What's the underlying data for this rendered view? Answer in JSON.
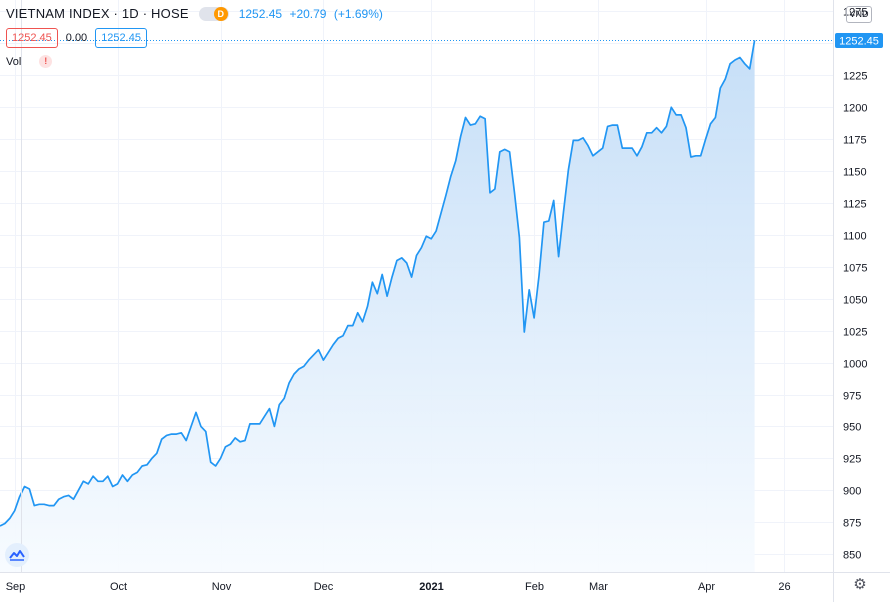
{
  "header": {
    "symbol": "VIETNAM INDEX · 1D · HOSE",
    "badge": "D",
    "last": "1252.45",
    "change": "+20.79",
    "change_pct": "(+1.69%)"
  },
  "price_row": {
    "bid": "1252.45",
    "spread": "0.00",
    "ask": "1252.45"
  },
  "volume": {
    "label": "Vol",
    "warning": "!"
  },
  "currency": "VND",
  "icons": {
    "logo": "tradingview-logo-icon",
    "settings": "gear-icon"
  },
  "colors": {
    "line": "#2196f3",
    "area_top": "#c3ddf7",
    "area_bottom": "#f7fbff",
    "price_label_bg": "#2196f3"
  },
  "chart_data": {
    "type": "area",
    "y_ticks": [
      1275,
      1250,
      1225,
      1200,
      1175,
      1150,
      1125,
      1100,
      1075,
      1050,
      1025,
      1000,
      975,
      950,
      925,
      900,
      875,
      850
    ],
    "ylim": [
      836,
      1284
    ],
    "x_labels": [
      {
        "label": "Sep",
        "index": 3
      },
      {
        "label": "Oct",
        "index": 24
      },
      {
        "label": "Nov",
        "index": 45
      },
      {
        "label": "Dec",
        "index": 66
      },
      {
        "label": "2021",
        "index": 88
      },
      {
        "label": "Feb",
        "index": 109
      },
      {
        "label": "Mar",
        "index": 122
      },
      {
        "label": "Apr",
        "index": 144
      },
      {
        "label": "26",
        "index": 160
      }
    ],
    "last_price_label": "1252.45",
    "grid": true,
    "series": [
      {
        "values": [
          872,
          874,
          878,
          884,
          895,
          903,
          901,
          888,
          889,
          889,
          888,
          888,
          893,
          895,
          896,
          893,
          900,
          907,
          905,
          911,
          907,
          907,
          911,
          903,
          905,
          912,
          907,
          912,
          914,
          919,
          920,
          925,
          929,
          940,
          943,
          944,
          944,
          945,
          939,
          950,
          961,
          950,
          946,
          922,
          919,
          925,
          934,
          936,
          941,
          938,
          939,
          952,
          952,
          952,
          958,
          964,
          950,
          967,
          972,
          984,
          991,
          995,
          997,
          1002,
          1006,
          1010,
          1002,
          1008,
          1014,
          1019,
          1021,
          1029,
          1029,
          1039,
          1032,
          1044,
          1063,
          1054,
          1069,
          1052,
          1067,
          1080,
          1082,
          1078,
          1067,
          1084,
          1090,
          1099,
          1097,
          1103,
          1117,
          1131,
          1146,
          1158,
          1177,
          1192,
          1186,
          1187,
          1193,
          1191,
          1133,
          1136,
          1165,
          1167,
          1165,
          1133,
          1098,
          1024,
          1057,
          1035,
          1068,
          1110,
          1111,
          1127,
          1083,
          1118,
          1151,
          1174,
          1174,
          1176,
          1170,
          1162,
          1165,
          1168,
          1185,
          1186,
          1186,
          1168,
          1168,
          1168,
          1162,
          1169,
          1180,
          1180,
          1184,
          1180,
          1185,
          1200,
          1194,
          1194,
          1184,
          1161,
          1162,
          1162,
          1175,
          1187,
          1192,
          1215,
          1222,
          1234,
          1237,
          1239,
          1234,
          1230,
          1252.45
        ]
      }
    ]
  }
}
